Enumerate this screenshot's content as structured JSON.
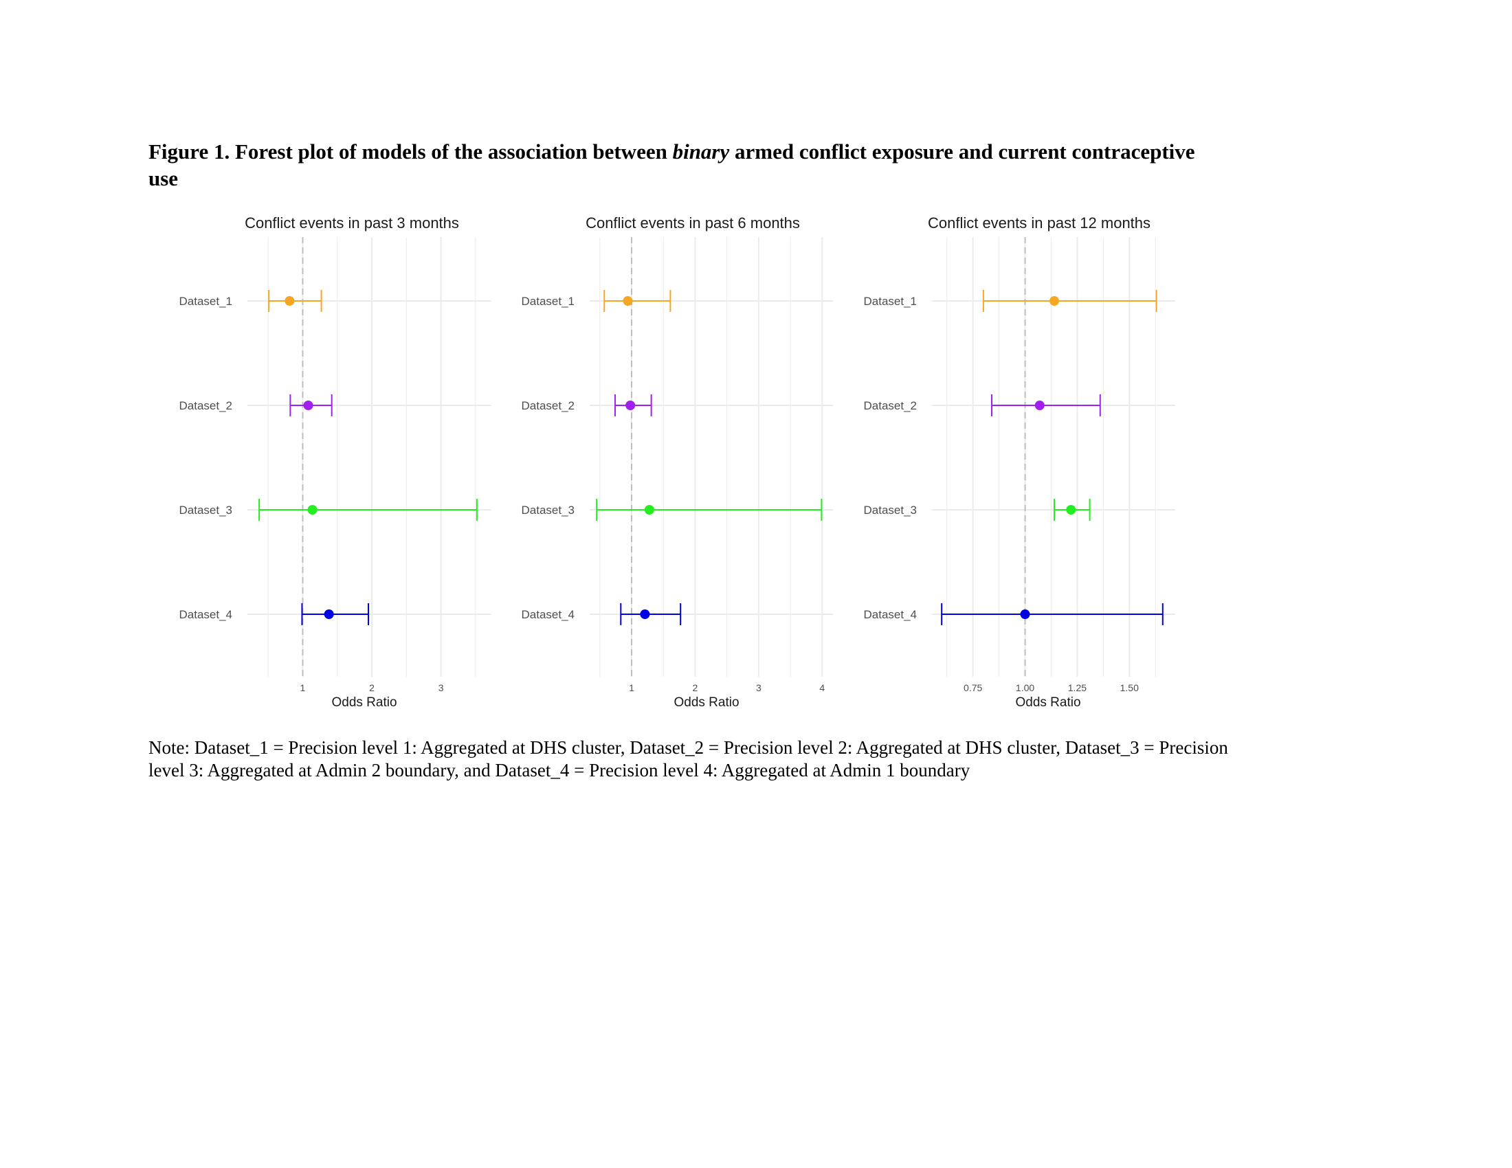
{
  "figure": {
    "title_pre": "Figure 1. Forest plot of models of the association between ",
    "title_emph": "binary",
    "title_post": " armed conflict exposure and current contraceptive use",
    "note": "Note: Dataset_1 = Precision level 1: Aggregated at DHS cluster, Dataset_2 = Precision level 2: Aggregated at DHS cluster, Dataset_3 = Precision level 3: Aggregated at Admin 2 boundary, and Dataset_4 = Precision level 4: Aggregated at Admin 1 boundary"
  },
  "colors": {
    "Dataset_1": "#f5a623",
    "Dataset_2": "#a020f0",
    "Dataset_3": "#22ee22",
    "Dataset_4": "#0000e6",
    "grid": "#ebebeb",
    "reference": "#bdbdbd",
    "text": "#4d4d4d"
  },
  "chart_data": [
    {
      "type": "forest",
      "title": "Conflict events in past 3 months",
      "xlabel": "Odds Ratio",
      "ylabel": "",
      "xlim": [
        0.2,
        3.73
      ],
      "xticks": [
        1,
        2,
        3
      ],
      "tick_labels": [
        "1",
        "2",
        "3"
      ],
      "reference_line": 1,
      "grid": true,
      "categories": [
        "Dataset_1",
        "Dataset_2",
        "Dataset_3",
        "Dataset_4"
      ],
      "estimates": [
        0.81,
        1.08,
        1.14,
        1.38
      ],
      "lower": [
        0.51,
        0.82,
        0.37,
        0.99
      ],
      "upper": [
        1.27,
        1.42,
        3.52,
        1.95
      ]
    },
    {
      "type": "forest",
      "title": "Conflict events in past 6 months",
      "xlabel": "Odds Ratio",
      "ylabel": "",
      "xlim": [
        0.34,
        4.17
      ],
      "xticks": [
        1,
        2,
        3,
        4
      ],
      "tick_labels": [
        "1",
        "2",
        "3",
        "4"
      ],
      "reference_line": 1,
      "grid": true,
      "categories": [
        "Dataset_1",
        "Dataset_2",
        "Dataset_3",
        "Dataset_4"
      ],
      "estimates": [
        0.94,
        0.98,
        1.28,
        1.21
      ],
      "lower": [
        0.57,
        0.74,
        0.45,
        0.83
      ],
      "upper": [
        1.61,
        1.31,
        3.99,
        1.77
      ]
    },
    {
      "type": "forest",
      "title": "Conflict events in past 12 months",
      "xlabel": "Odds Ratio",
      "ylabel": "",
      "xlim": [
        0.55,
        1.72
      ],
      "xticks": [
        0.75,
        1.0,
        1.25,
        1.5
      ],
      "tick_labels": [
        "0.75",
        "1.00",
        "1.25",
        "1.50"
      ],
      "reference_line": 1,
      "grid": true,
      "categories": [
        "Dataset_1",
        "Dataset_2",
        "Dataset_3",
        "Dataset_4"
      ],
      "estimates": [
        1.14,
        1.07,
        1.22,
        1.0
      ],
      "lower": [
        0.8,
        0.84,
        1.14,
        0.6
      ],
      "upper": [
        1.63,
        1.36,
        1.31,
        1.66
      ]
    }
  ]
}
